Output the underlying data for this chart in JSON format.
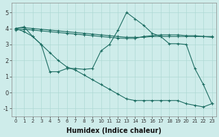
{
  "xlabel": "Humidex (Indice chaleur)",
  "xlim_min": -0.5,
  "xlim_max": 23.5,
  "ylim_min": -1.5,
  "ylim_max": 5.6,
  "yticks": [
    -1,
    0,
    1,
    2,
    3,
    4,
    5
  ],
  "xticks": [
    0,
    1,
    2,
    3,
    4,
    5,
    6,
    7,
    8,
    9,
    10,
    11,
    12,
    13,
    14,
    15,
    16,
    17,
    18,
    19,
    20,
    21,
    22,
    23
  ],
  "bg_color": "#ceecea",
  "grid_color": "#add8d4",
  "line_color": "#1a6b60",
  "series": [
    {
      "x": [
        0,
        1,
        2,
        3,
        4,
        5,
        6,
        7,
        8,
        9,
        10,
        11,
        12,
        13,
        14,
        15,
        16,
        17,
        18,
        19,
        20,
        21,
        22,
        23
      ],
      "y": [
        4.0,
        4.05,
        4.0,
        3.95,
        3.9,
        3.85,
        3.8,
        3.75,
        3.7,
        3.65,
        3.6,
        3.55,
        3.5,
        3.45,
        3.45,
        3.45,
        3.5,
        3.5,
        3.5,
        3.5,
        3.5,
        3.5,
        3.5,
        3.5
      ]
    },
    {
      "x": [
        0,
        1,
        2,
        3,
        4,
        5,
        6,
        7,
        8,
        9,
        10,
        11,
        12,
        13,
        14,
        15,
        16,
        17,
        18,
        19,
        20,
        21,
        22,
        23
      ],
      "y": [
        3.9,
        3.95,
        3.9,
        3.85,
        3.8,
        3.75,
        3.7,
        3.65,
        3.6,
        3.55,
        3.5,
        3.45,
        3.4,
        3.38,
        3.38,
        3.5,
        3.55,
        3.6,
        3.6,
        3.6,
        3.55,
        3.55,
        3.5,
        3.45
      ]
    },
    {
      "x": [
        0,
        1,
        2,
        3,
        4,
        5,
        6,
        7,
        8,
        9,
        10,
        11,
        12,
        13,
        14,
        15,
        16,
        17,
        18,
        19,
        20,
        21,
        22,
        23
      ],
      "y": [
        4.0,
        4.1,
        3.5,
        3.0,
        1.3,
        1.3,
        1.5,
        1.5,
        1.45,
        1.5,
        2.6,
        3.0,
        3.9,
        5.0,
        4.6,
        4.2,
        3.7,
        3.5,
        3.05,
        3.05,
        3.0,
        1.5,
        0.5,
        -0.7
      ]
    },
    {
      "x": [
        0,
        1,
        2,
        3,
        4,
        5,
        6,
        7,
        8,
        9,
        10,
        11,
        12,
        13,
        14,
        15,
        16,
        17,
        18,
        19,
        20,
        21,
        22,
        23
      ],
      "y": [
        4.0,
        3.8,
        3.5,
        3.0,
        2.5,
        2.0,
        1.6,
        1.4,
        1.1,
        0.8,
        0.5,
        0.2,
        -0.1,
        -0.4,
        -0.5,
        -0.5,
        -0.5,
        -0.5,
        -0.5,
        -0.5,
        -0.7,
        -0.8,
        -0.9,
        -0.7
      ]
    }
  ]
}
